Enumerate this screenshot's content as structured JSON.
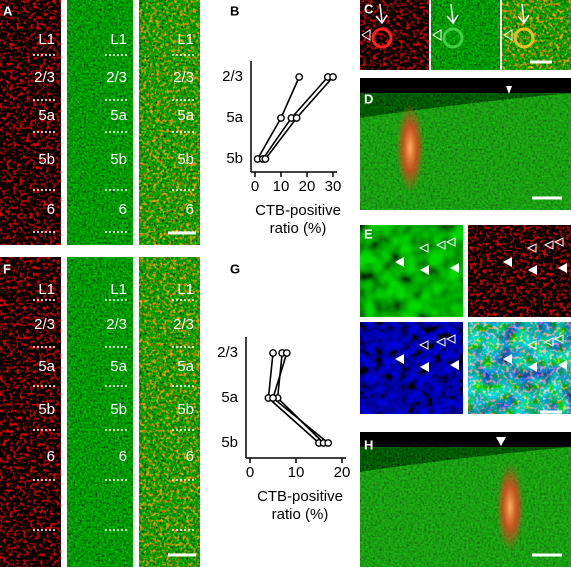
{
  "figure": {
    "panel_labels": [
      "A",
      "B",
      "C",
      "D",
      "E",
      "F",
      "G",
      "H"
    ],
    "layers_A": [
      "L1",
      "2/3",
      "5a",
      "5b",
      "6"
    ],
    "layers_F": [
      "L1",
      "2/3",
      "5a",
      "5b",
      "6"
    ]
  },
  "chart_data": [
    {
      "type": "line",
      "orientation": "horizontal",
      "categories": [
        "2/3",
        "5a",
        "5b"
      ],
      "series": [
        {
          "color": "#000000",
          "values": [
            17,
            10,
            1
          ]
        },
        {
          "color": "#000000",
          "values": [
            28,
            14,
            3
          ]
        },
        {
          "color": "#000000",
          "values": [
            30,
            16,
            4
          ]
        }
      ],
      "marker": "open-circle",
      "xlim": [
        0,
        30
      ],
      "xticks": [
        0,
        10,
        20,
        30
      ],
      "xlabel": [
        "CTB-positive",
        "ratio (%)"
      ]
    },
    {
      "type": "line",
      "orientation": "horizontal",
      "categories": [
        "2/3",
        "5a",
        "5b"
      ],
      "series": [
        {
          "color": "#000000",
          "values": [
            5,
            4,
            15
          ]
        },
        {
          "color": "#000000",
          "values": [
            7,
            6,
            16
          ]
        },
        {
          "color": "#000000",
          "values": [
            8,
            5,
            17
          ]
        }
      ],
      "marker": "open-circle",
      "xlim": [
        0,
        20
      ],
      "xticks": [
        0,
        10,
        20
      ],
      "xlabel": [
        "CTB-positive",
        "ratio (%)"
      ]
    }
  ]
}
